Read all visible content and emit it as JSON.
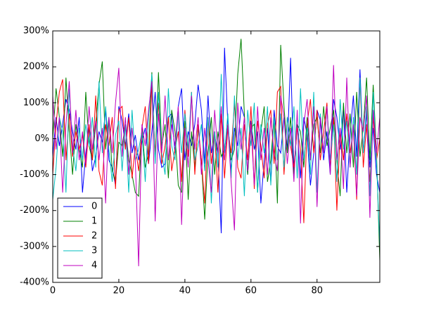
{
  "chart_data": {
    "type": "line",
    "x": [
      0,
      1,
      2,
      3,
      4,
      5,
      6,
      7,
      8,
      9,
      10,
      11,
      12,
      13,
      14,
      15,
      16,
      17,
      18,
      19,
      20,
      21,
      22,
      23,
      24,
      25,
      26,
      27,
      28,
      29,
      30,
      31,
      32,
      33,
      34,
      35,
      36,
      37,
      38,
      39,
      40,
      41,
      42,
      43,
      44,
      45,
      46,
      47,
      48,
      49,
      50,
      51,
      52,
      53,
      54,
      55,
      56,
      57,
      58,
      59,
      60,
      61,
      62,
      63,
      64,
      65,
      66,
      67,
      68,
      69,
      70,
      71,
      72,
      73,
      74,
      75,
      76,
      77,
      78,
      79,
      80,
      81,
      82,
      83,
      84,
      85,
      86,
      87,
      88,
      89,
      90,
      91,
      92,
      93,
      94,
      95,
      96,
      97,
      98,
      99
    ],
    "series": [
      {
        "name": "0",
        "color": "#0000ff",
        "values": [
          -50,
          60,
          -20,
          40,
          110,
          80,
          20,
          -30,
          60,
          -150,
          -40,
          30,
          -90,
          -50,
          20,
          -10,
          80,
          -60,
          -80,
          -130,
          90,
          50,
          -20,
          70,
          -40,
          10,
          -60,
          -10,
          30,
          -70,
          20,
          130,
          -30,
          -80,
          -70,
          60,
          70,
          -40,
          90,
          140,
          -60,
          20,
          -20,
          40,
          150,
          80,
          -70,
          120,
          -40,
          10,
          -40,
          -263,
          253,
          40,
          -90,
          30,
          -20,
          90,
          60,
          -100,
          50,
          -30,
          20,
          -180,
          -60,
          30,
          -120,
          80,
          -20,
          -40,
          60,
          -30,
          225,
          -90,
          40,
          -110,
          60,
          10,
          -130,
          -40,
          80,
          50,
          -60,
          20,
          -100,
          110,
          60,
          -30,
          90,
          -150,
          10,
          120,
          -50,
          193,
          -40,
          70,
          -80,
          30,
          -100,
          -150
        ]
      },
      {
        "name": "1",
        "color": "#008000",
        "values": [
          0,
          140,
          60,
          -50,
          170,
          20,
          -100,
          40,
          -30,
          -80,
          130,
          -20,
          -60,
          40,
          150,
          215,
          -30,
          60,
          -90,
          -120,
          -10,
          -20,
          40,
          -60,
          -100,
          -150,
          -160,
          30,
          -80,
          -40,
          185,
          -60,
          185,
          -20,
          40,
          -110,
          80,
          20,
          -130,
          -150,
          50,
          -170,
          20,
          -80,
          30,
          -60,
          -225,
          -40,
          60,
          -100,
          20,
          -50,
          -30,
          40,
          -60,
          -30,
          180,
          278,
          70,
          -100,
          30,
          40,
          -150,
          20,
          90,
          -120,
          -60,
          60,
          -180,
          261,
          90,
          -40,
          60,
          -100,
          40,
          20,
          -80,
          60,
          -60,
          40,
          60,
          -40,
          90,
          -20,
          30,
          80,
          -60,
          -160,
          100,
          -40,
          70,
          -80,
          130,
          -50,
          30,
          170,
          -60,
          150,
          -40,
          -340
        ]
      },
      {
        "name": "2",
        "color": "#ff0000",
        "values": [
          -100,
          40,
          130,
          165,
          -60,
          70,
          -50,
          20,
          -30,
          10,
          -80,
          40,
          -60,
          120,
          -90,
          -130,
          40,
          -20,
          60,
          -140,
          80,
          90,
          -30,
          60,
          -110,
          -20,
          -90,
          30,
          90,
          -70,
          150,
          -40,
          100,
          -70,
          -20,
          60,
          -90,
          -30,
          20,
          -120,
          80,
          -50,
          130,
          -100,
          40,
          -60,
          -180,
          60,
          -70,
          20,
          -150,
          70,
          -110,
          30,
          -40,
          100,
          -80,
          -110,
          40,
          -60,
          90,
          -140,
          50,
          -20,
          -110,
          40,
          80,
          -70,
          130,
          145,
          -100,
          60,
          -20,
          -80,
          30,
          -30,
          -235,
          40,
          110,
          -40,
          80,
          -60,
          20,
          100,
          -90,
          60,
          -200,
          20,
          -60,
          70,
          -40,
          30,
          -170,
          170,
          -80,
          40,
          -120,
          60,
          -60,
          0
        ]
      },
      {
        "name": "3",
        "color": "#00bfbf",
        "values": [
          -170,
          -80,
          60,
          20,
          -150,
          140,
          -20,
          -90,
          30,
          -60,
          40,
          -20,
          60,
          -80,
          160,
          -40,
          90,
          -30,
          -120,
          10,
          50,
          -90,
          40,
          -150,
          80,
          -60,
          -30,
          20,
          -120,
          60,
          180,
          -70,
          130,
          -40,
          -100,
          140,
          -20,
          -60,
          80,
          -40,
          70,
          -30,
          130,
          -60,
          -20,
          40,
          -90,
          60,
          -180,
          20,
          -80,
          180,
          -40,
          70,
          -110,
          120,
          -60,
          30,
          -160,
          80,
          -20,
          100,
          -150,
          40,
          -40,
          90,
          -130,
          60,
          -60,
          70,
          -80,
          60,
          -20,
          90,
          -110,
          140,
          -60,
          30,
          -100,
          130,
          -150,
          70,
          -40,
          90,
          -60,
          40,
          -120,
          110,
          -30,
          50,
          -80,
          60,
          -100,
          170,
          -40,
          90,
          -160,
          130,
          -60,
          -300
        ]
      },
      {
        "name": "4",
        "color": "#bf00bf",
        "values": [
          120,
          -30,
          60,
          -150,
          40,
          160,
          -40,
          80,
          -60,
          20,
          -70,
          90,
          -30,
          50,
          -60,
          30,
          -180,
          60,
          -40,
          100,
          197,
          -50,
          60,
          -100,
          30,
          -60,
          -355,
          40,
          -20,
          80,
          160,
          -230,
          70,
          -40,
          120,
          -60,
          40,
          -20,
          90,
          -240,
          30,
          -80,
          120,
          -30,
          60,
          -100,
          30,
          -60,
          -150,
          80,
          -40,
          90,
          -60,
          40,
          -120,
          -255,
          100,
          -30,
          60,
          -90,
          40,
          -130,
          90,
          -60,
          30,
          -100,
          60,
          -40,
          -90,
          120,
          60,
          -70,
          30,
          -120,
          80,
          -236,
          40,
          110,
          -60,
          90,
          -190,
          60,
          -40,
          90,
          -100,
          205,
          -60,
          30,
          -140,
          170,
          -80,
          40,
          -160,
          60,
          20,
          120,
          -220,
          80,
          -40,
          60
        ]
      }
    ],
    "xlim": [
      0,
      99
    ],
    "xticks": [
      0,
      20,
      40,
      60,
      80
    ],
    "ylim": [
      -400,
      300
    ],
    "yticks": [
      {
        "value": -400,
        "label": "-400%"
      },
      {
        "value": -300,
        "label": "-300%"
      },
      {
        "value": -200,
        "label": "-200%"
      },
      {
        "value": -100,
        "label": "-100%"
      },
      {
        "value": 0,
        "label": "0%"
      },
      {
        "value": 100,
        "label": "100%"
      },
      {
        "value": 200,
        "label": "200%"
      },
      {
        "value": 300,
        "label": "300%"
      }
    ],
    "grid": false,
    "legend": "lower left"
  }
}
